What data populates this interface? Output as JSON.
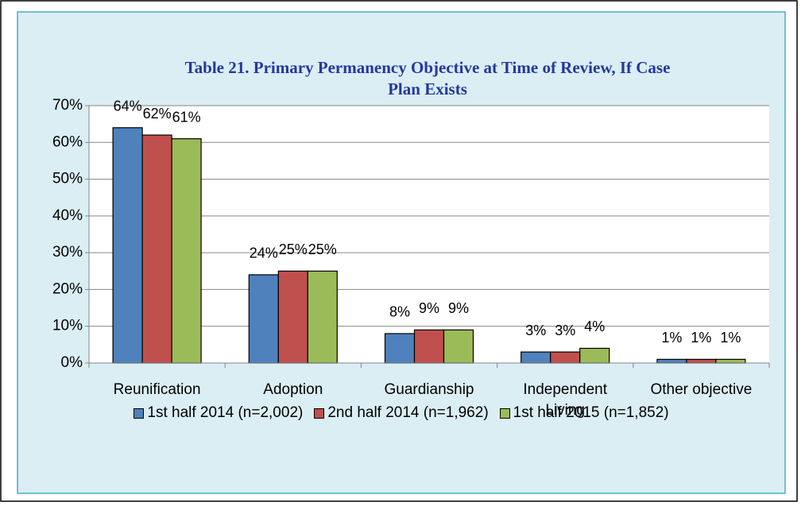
{
  "chart_data": {
    "type": "bar",
    "title": "Table 21.  Primary Permanency Objective at Time of Review, If Case Plan Exists",
    "categories": [
      "Reunification",
      "Adoption",
      "Guardianship",
      "Independent Living",
      "Other objective"
    ],
    "series": [
      {
        "name": "1st half 2014 (n=2,002)",
        "color": "#4f81bd",
        "values": [
          64,
          24,
          8,
          3,
          1
        ],
        "value_labels": [
          "64%",
          "24%",
          "8%",
          "3%",
          "1%"
        ]
      },
      {
        "name": "2nd half 2014 (n=1,962)",
        "color": "#c0504d",
        "values": [
          62,
          25,
          9,
          3,
          1
        ],
        "value_labels": [
          "62%",
          "25%",
          "9%",
          "3%",
          "1%"
        ]
      },
      {
        "name": "1st half 2015 (n=1,852)",
        "color": "#9bbb59",
        "values": [
          61,
          25,
          9,
          4,
          1
        ],
        "value_labels": [
          "61%",
          "25%",
          "9%",
          "4%",
          "1%"
        ]
      }
    ],
    "ylim": [
      0,
      70
    ],
    "yticks": [
      {
        "value": 0,
        "label": "0%"
      },
      {
        "value": 10,
        "label": "10%"
      },
      {
        "value": 20,
        "label": "20%"
      },
      {
        "value": 30,
        "label": "30%"
      },
      {
        "value": 40,
        "label": "40%"
      },
      {
        "value": 50,
        "label": "50%"
      },
      {
        "value": 60,
        "label": "60%"
      },
      {
        "value": 70,
        "label": "70%"
      }
    ],
    "grid": true,
    "legend": "bottom"
  }
}
